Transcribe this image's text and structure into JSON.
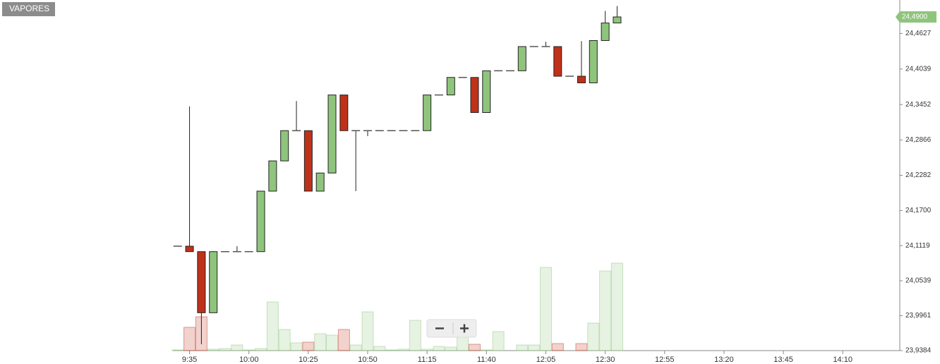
{
  "chart_data": {
    "type": "candlestick",
    "title": "VAPORES",
    "x": [
      "9:30",
      "9:35",
      "9:40",
      "9:45",
      "9:50",
      "9:55",
      "10:00",
      "10:05",
      "10:10",
      "10:15",
      "10:20",
      "10:25",
      "10:30",
      "10:35",
      "10:40",
      "10:45",
      "10:50",
      "10:55",
      "11:00",
      "11:05",
      "11:10",
      "11:15",
      "11:20",
      "11:25",
      "11:30",
      "11:35",
      "11:40",
      "11:45",
      "11:50",
      "11:55",
      "12:00",
      "12:05",
      "12:10",
      "12:15",
      "12:20",
      "12:25",
      "12:30",
      "12:35"
    ],
    "series": [
      {
        "name": "open",
        "values": [
          24.111,
          24.111,
          24.102,
          24.001,
          24.102,
          24.102,
          24.102,
          24.102,
          24.202,
          24.252,
          24.302,
          24.302,
          24.202,
          24.232,
          24.361,
          24.302,
          24.302,
          24.302,
          24.302,
          24.302,
          24.302,
          24.302,
          24.361,
          24.361,
          24.39,
          24.39,
          24.332,
          24.401,
          24.401,
          24.401,
          24.441,
          24.441,
          24.441,
          24.392,
          24.392,
          24.381,
          24.451,
          24.48
        ]
      },
      {
        "name": "high",
        "values": [
          24.111,
          24.342,
          24.102,
          24.102,
          24.102,
          24.111,
          24.102,
          24.202,
          24.252,
          24.302,
          24.351,
          24.302,
          24.232,
          24.361,
          24.361,
          24.302,
          24.302,
          24.302,
          24.302,
          24.302,
          24.302,
          24.361,
          24.361,
          24.39,
          24.39,
          24.39,
          24.401,
          24.401,
          24.401,
          24.441,
          24.441,
          24.449,
          24.441,
          24.392,
          24.45,
          24.451,
          24.5,
          24.508
        ]
      },
      {
        "name": "low",
        "values": [
          24.111,
          24.102,
          23.949,
          24.001,
          24.102,
          24.102,
          24.102,
          24.102,
          24.202,
          24.252,
          24.302,
          24.202,
          24.202,
          24.232,
          24.302,
          24.202,
          24.293,
          24.302,
          24.302,
          24.302,
          24.302,
          24.302,
          24.361,
          24.361,
          24.39,
          24.332,
          24.332,
          24.401,
          24.401,
          24.401,
          24.441,
          24.441,
          24.392,
          24.392,
          24.381,
          24.381,
          24.451,
          24.48
        ]
      },
      {
        "name": "close",
        "values": [
          24.111,
          24.102,
          24.001,
          24.102,
          24.102,
          24.102,
          24.102,
          24.202,
          24.252,
          24.302,
          24.302,
          24.202,
          24.232,
          24.361,
          24.302,
          24.302,
          24.302,
          24.302,
          24.302,
          24.302,
          24.302,
          24.361,
          24.361,
          24.39,
          24.39,
          24.332,
          24.401,
          24.401,
          24.401,
          24.441,
          24.441,
          24.441,
          24.392,
          24.392,
          24.381,
          24.451,
          24.48,
          24.49
        ]
      },
      {
        "name": "volume",
        "values": [
          1,
          33,
          48,
          2,
          3,
          8,
          1,
          3,
          69,
          30,
          11,
          12,
          24,
          22,
          30,
          8,
          55,
          6,
          1,
          2,
          43,
          2,
          6,
          5,
          23,
          9,
          1,
          27,
          0,
          8,
          8,
          118,
          10,
          0,
          10,
          39,
          113,
          124
        ]
      }
    ],
    "last_price": {
      "value": 24.49,
      "label": "24,4900"
    },
    "up_color": "#8fc47c",
    "down_color": "#c0311a",
    "ylim": [
      23.9384,
      24.518
    ],
    "yticks": [
      {
        "value": 23.9384,
        "label": "23,9384"
      },
      {
        "value": 23.9961,
        "label": "23,9961"
      },
      {
        "value": 24.0539,
        "label": "24,0539"
      },
      {
        "value": 24.1119,
        "label": "24,1119"
      },
      {
        "value": 24.17,
        "label": "24,1700"
      },
      {
        "value": 24.2282,
        "label": "24,2282"
      },
      {
        "value": 24.2866,
        "label": "24,2866"
      },
      {
        "value": 24.3452,
        "label": "24,3452"
      },
      {
        "value": 24.4039,
        "label": "24,4039"
      },
      {
        "value": 24.4627,
        "label": "24,4627"
      }
    ],
    "xlim": [
      "9:28",
      "14:34"
    ],
    "xticks": [
      "9:35",
      "10:00",
      "10:25",
      "10:50",
      "11:15",
      "11:40",
      "12:05",
      "12:30",
      "12:55",
      "13:20",
      "13:45",
      "14:10"
    ]
  }
}
